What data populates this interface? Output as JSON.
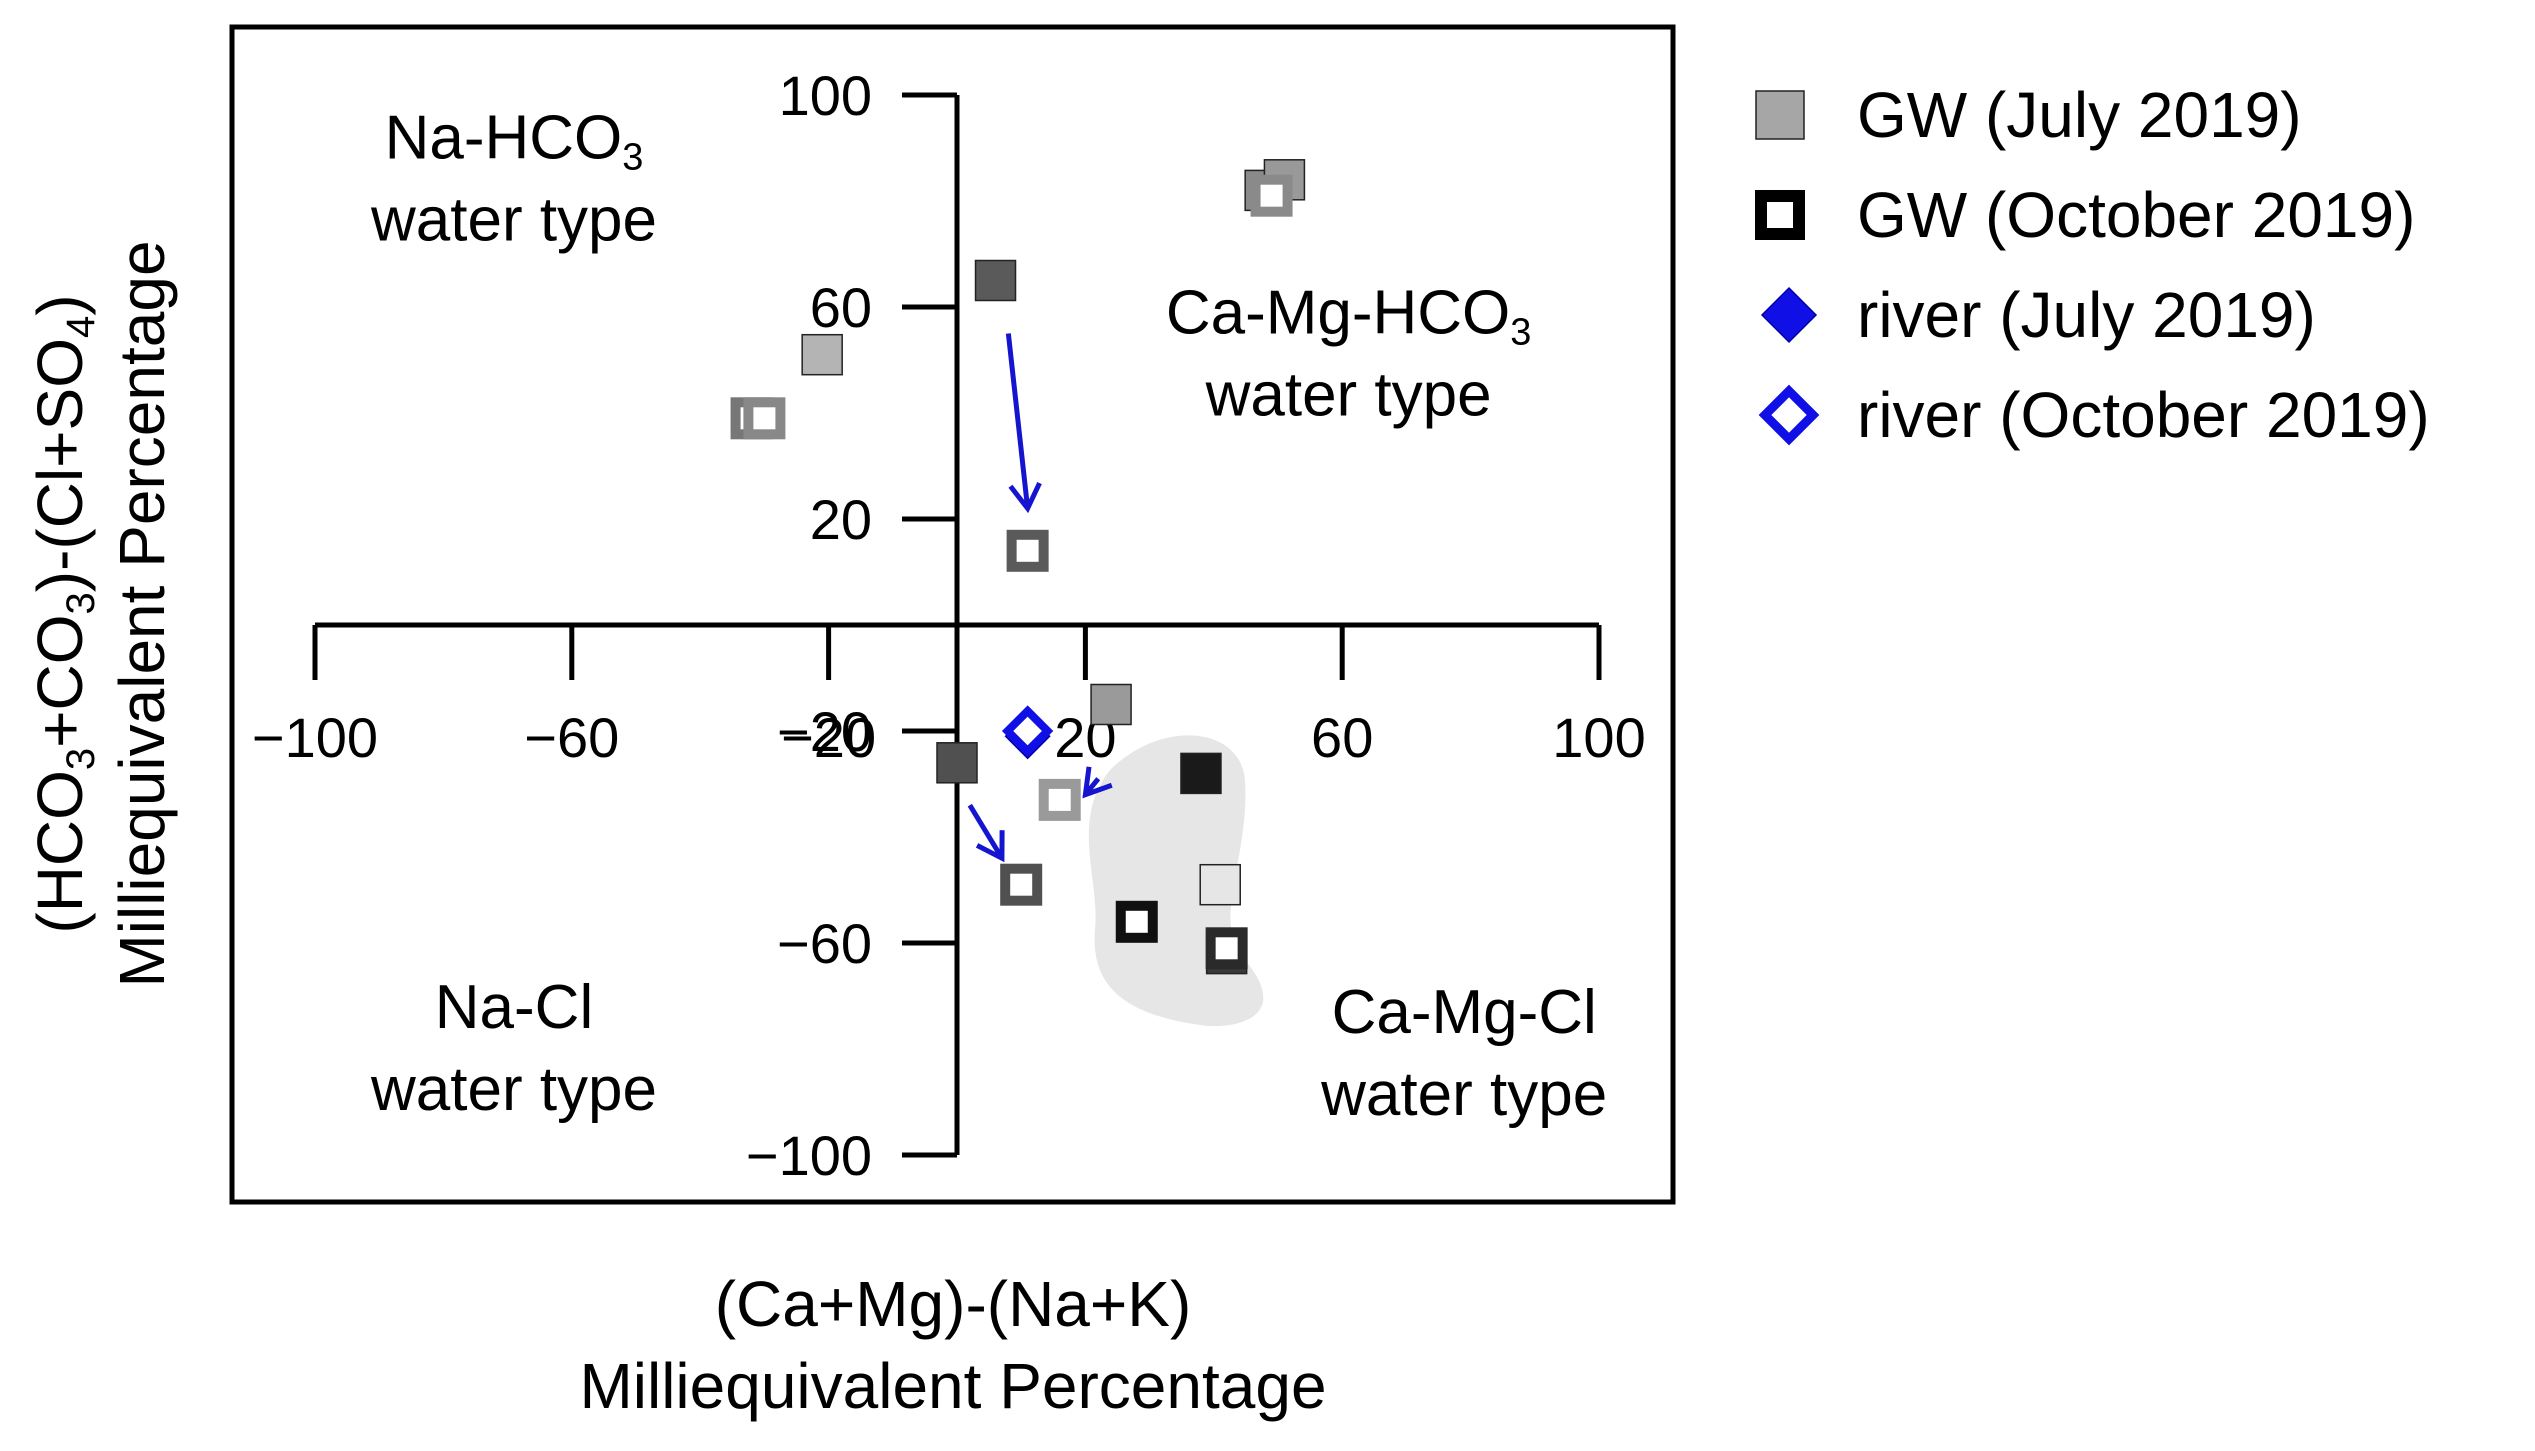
{
  "colors": {
    "gw_july_fill": "#a6a6a6",
    "gw_oct_fill": "#000000",
    "river_july_fill": "#1010e6",
    "river_oct_stroke": "#1010e6",
    "arrow": "#1515d0",
    "highlight_region": "#e6e6e6"
  },
  "chart_data": {
    "type": "scatter",
    "title": "",
    "xlabel_lines": [
      "(Ca+Mg)-(Na+K)",
      "Milliequivalent Percentage"
    ],
    "ylabel_lines": [
      "(HCO3+CO3)-(Cl+SO4)",
      "Milliequivalent Percentage"
    ],
    "xlim": [
      -100,
      100
    ],
    "ylim": [
      -100,
      100
    ],
    "x_ticks": [
      -100,
      -60,
      -20,
      20,
      60,
      100
    ],
    "x_tick_labels": [
      "−100",
      "−60",
      "−20",
      "20",
      "60",
      "100"
    ],
    "y_ticks": [
      100,
      60,
      20,
      -20,
      -60,
      -100
    ],
    "y_tick_labels": [
      "100",
      "60",
      "20",
      "−20",
      "−60",
      "−100"
    ],
    "quadrant_labels": [
      {
        "name": "na-hco3",
        "line1": "Na-HCO3",
        "line2": "water type",
        "x": -69,
        "y": 88
      },
      {
        "name": "ca-mg-hco3",
        "line1": "Ca-Mg-HCO3",
        "line2": "water type",
        "x": 61,
        "y": 55
      },
      {
        "name": "na-cl",
        "line1": "Na-Cl",
        "line2": "water type",
        "x": -69,
        "y": -76
      },
      {
        "name": "ca-mg-cl",
        "line1": "Ca-Mg-Cl",
        "line2": "water type",
        "x": 79,
        "y": -77
      }
    ],
    "legend": [
      {
        "key": "gw_july",
        "label": "GW (July 2019)"
      },
      {
        "key": "gw_oct",
        "label": "GW (October 2019)"
      },
      {
        "key": "river_july",
        "label": "river (July 2019)"
      },
      {
        "key": "river_oct",
        "label": "river (October 2019)"
      }
    ],
    "legend_position": "outside-right",
    "series": [
      {
        "name": "GW (July 2019)",
        "key": "gw_july",
        "marker": "filled-square",
        "points": [
          {
            "x": 48,
            "y": 82,
            "gray": "#8a8a8a"
          },
          {
            "x": 51,
            "y": 84,
            "gray": "#999999"
          },
          {
            "x": 6,
            "y": 65,
            "gray": "#5a5a5a"
          },
          {
            "x": -21,
            "y": 51,
            "gray": "#b4b4b4"
          },
          {
            "x": 24,
            "y": -15,
            "gray": "#9a9a9a"
          },
          {
            "x": 0,
            "y": -26,
            "gray": "#505050"
          },
          {
            "x": 38,
            "y": -28,
            "gray": "#1a1a1a"
          },
          {
            "x": 41,
            "y": -49,
            "gray": "#e6e6e6"
          },
          {
            "x": 42,
            "y": -62,
            "gray": "#3a3a3a"
          }
        ]
      },
      {
        "name": "GW (October 2019)",
        "key": "gw_oct",
        "marker": "hollow-center-square",
        "points": [
          {
            "x": 49,
            "y": 81,
            "gray": "#8a8a8a"
          },
          {
            "x": -32,
            "y": 39,
            "gray": "#777777"
          },
          {
            "x": -30,
            "y": 39,
            "gray": "#888888"
          },
          {
            "x": 11,
            "y": 14,
            "gray": "#5a5a5a"
          },
          {
            "x": 16,
            "y": -33,
            "gray": "#9a9a9a"
          },
          {
            "x": 10,
            "y": -49,
            "gray": "#505050"
          },
          {
            "x": 28,
            "y": -56,
            "gray": "#101010"
          },
          {
            "x": 42,
            "y": -61,
            "gray": "#2a2a2a"
          }
        ]
      },
      {
        "name": "river (July 2019)",
        "key": "river_july",
        "marker": "filled-diamond",
        "points": [
          {
            "x": 11,
            "y": -20
          },
          {
            "x": 11,
            "y": -21
          }
        ]
      },
      {
        "name": "river (October 2019)",
        "key": "river_oct",
        "marker": "hollow-diamond",
        "points": [
          {
            "x": 11,
            "y": -20
          }
        ]
      }
    ],
    "arrows": [
      {
        "from": [
          8,
          55
        ],
        "to": [
          11,
          22
        ]
      },
      {
        "from": [
          2,
          -34
        ],
        "to": [
          7,
          -44
        ]
      },
      {
        "from": [
          22,
          -29
        ],
        "to": [
          20,
          -32
        ]
      }
    ],
    "shaded_region_note": "grey cluster of GW samples in Ca-Mg-Cl quadrant"
  }
}
